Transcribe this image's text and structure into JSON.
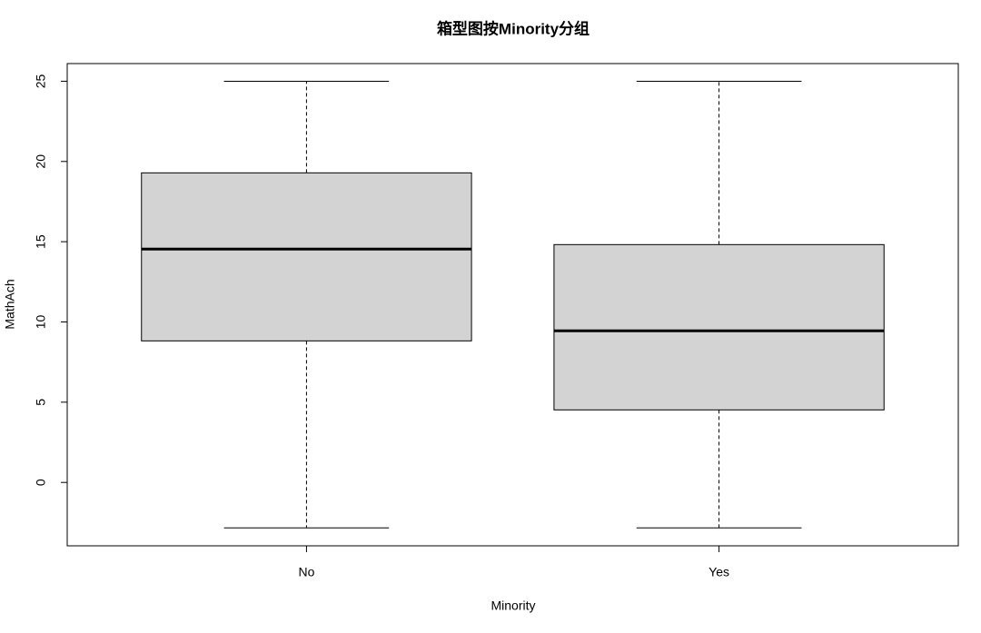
{
  "chart_data": {
    "type": "box",
    "title": "箱型图按Minority分组",
    "x_label": "Minority",
    "y_label": "MathAch",
    "categories": [
      "No",
      "Yes"
    ],
    "min": [
      -2.83,
      -2.83
    ],
    "q1": [
      8.82,
      4.52
    ],
    "median": [
      14.54,
      9.45
    ],
    "q3": [
      19.29,
      14.82
    ],
    "max": [
      25,
      25
    ],
    "color": "#d3d3d3",
    "ylim": [
      -3.95,
      26.1
    ],
    "yticks": [
      0,
      5,
      10,
      15,
      20,
      25
    ]
  }
}
